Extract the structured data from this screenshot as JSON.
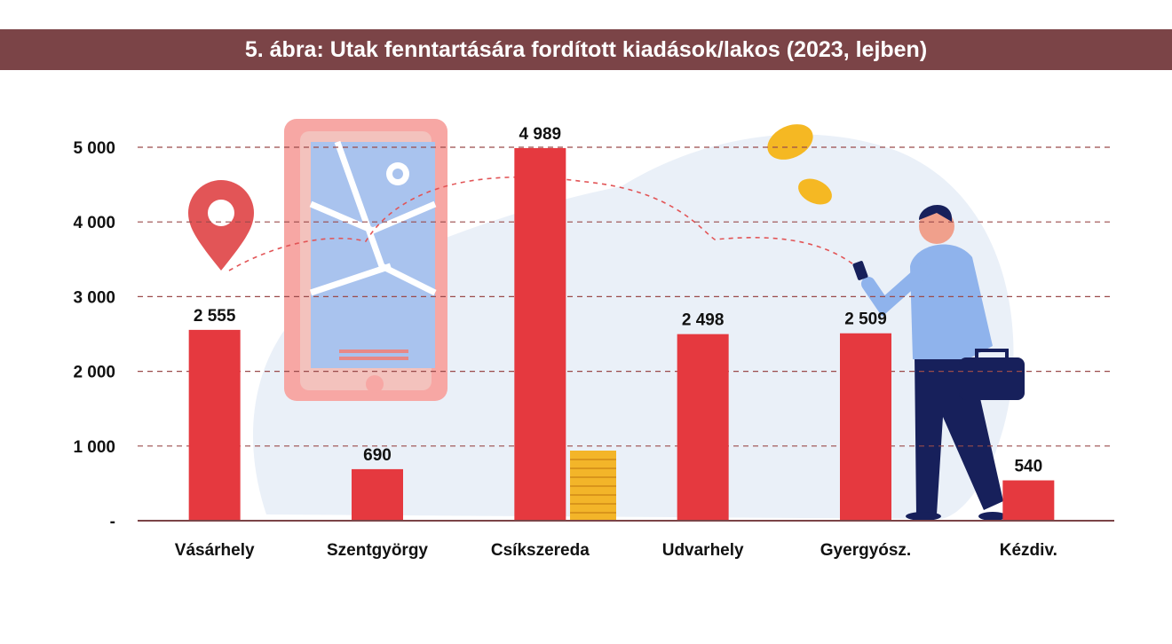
{
  "title": "5. ábra: Utak fenntartására fordított kiadások/lakos (2023, lejben)",
  "colors": {
    "title_bg": "#7b4447",
    "bar": "#e5393f",
    "grid": "#9a4b4b",
    "axis": "#7b4447"
  },
  "chart_data": {
    "type": "bar",
    "title": "5. ábra: Utak fenntartására fordított kiadások/lakos (2023, lejben)",
    "categories": [
      "Vásárhely",
      "Szentgyörgy",
      "Csíkszereda",
      "Udvarhely",
      "Gyergyósz.",
      "Kézdiv."
    ],
    "values": [
      2555,
      690,
      4989,
      2498,
      2509,
      540
    ],
    "value_labels": [
      "2 555",
      "690",
      "4 989",
      "2 498",
      "2 509",
      "540"
    ],
    "ylim": [
      0,
      5000
    ],
    "yticks": [
      0,
      1000,
      2000,
      3000,
      4000,
      5000
    ],
    "ytick_labels": [
      "-",
      "1 000",
      "2 000",
      "3 000",
      "4 000",
      "5 000"
    ],
    "grid": true,
    "xlabel": "",
    "ylabel": ""
  }
}
